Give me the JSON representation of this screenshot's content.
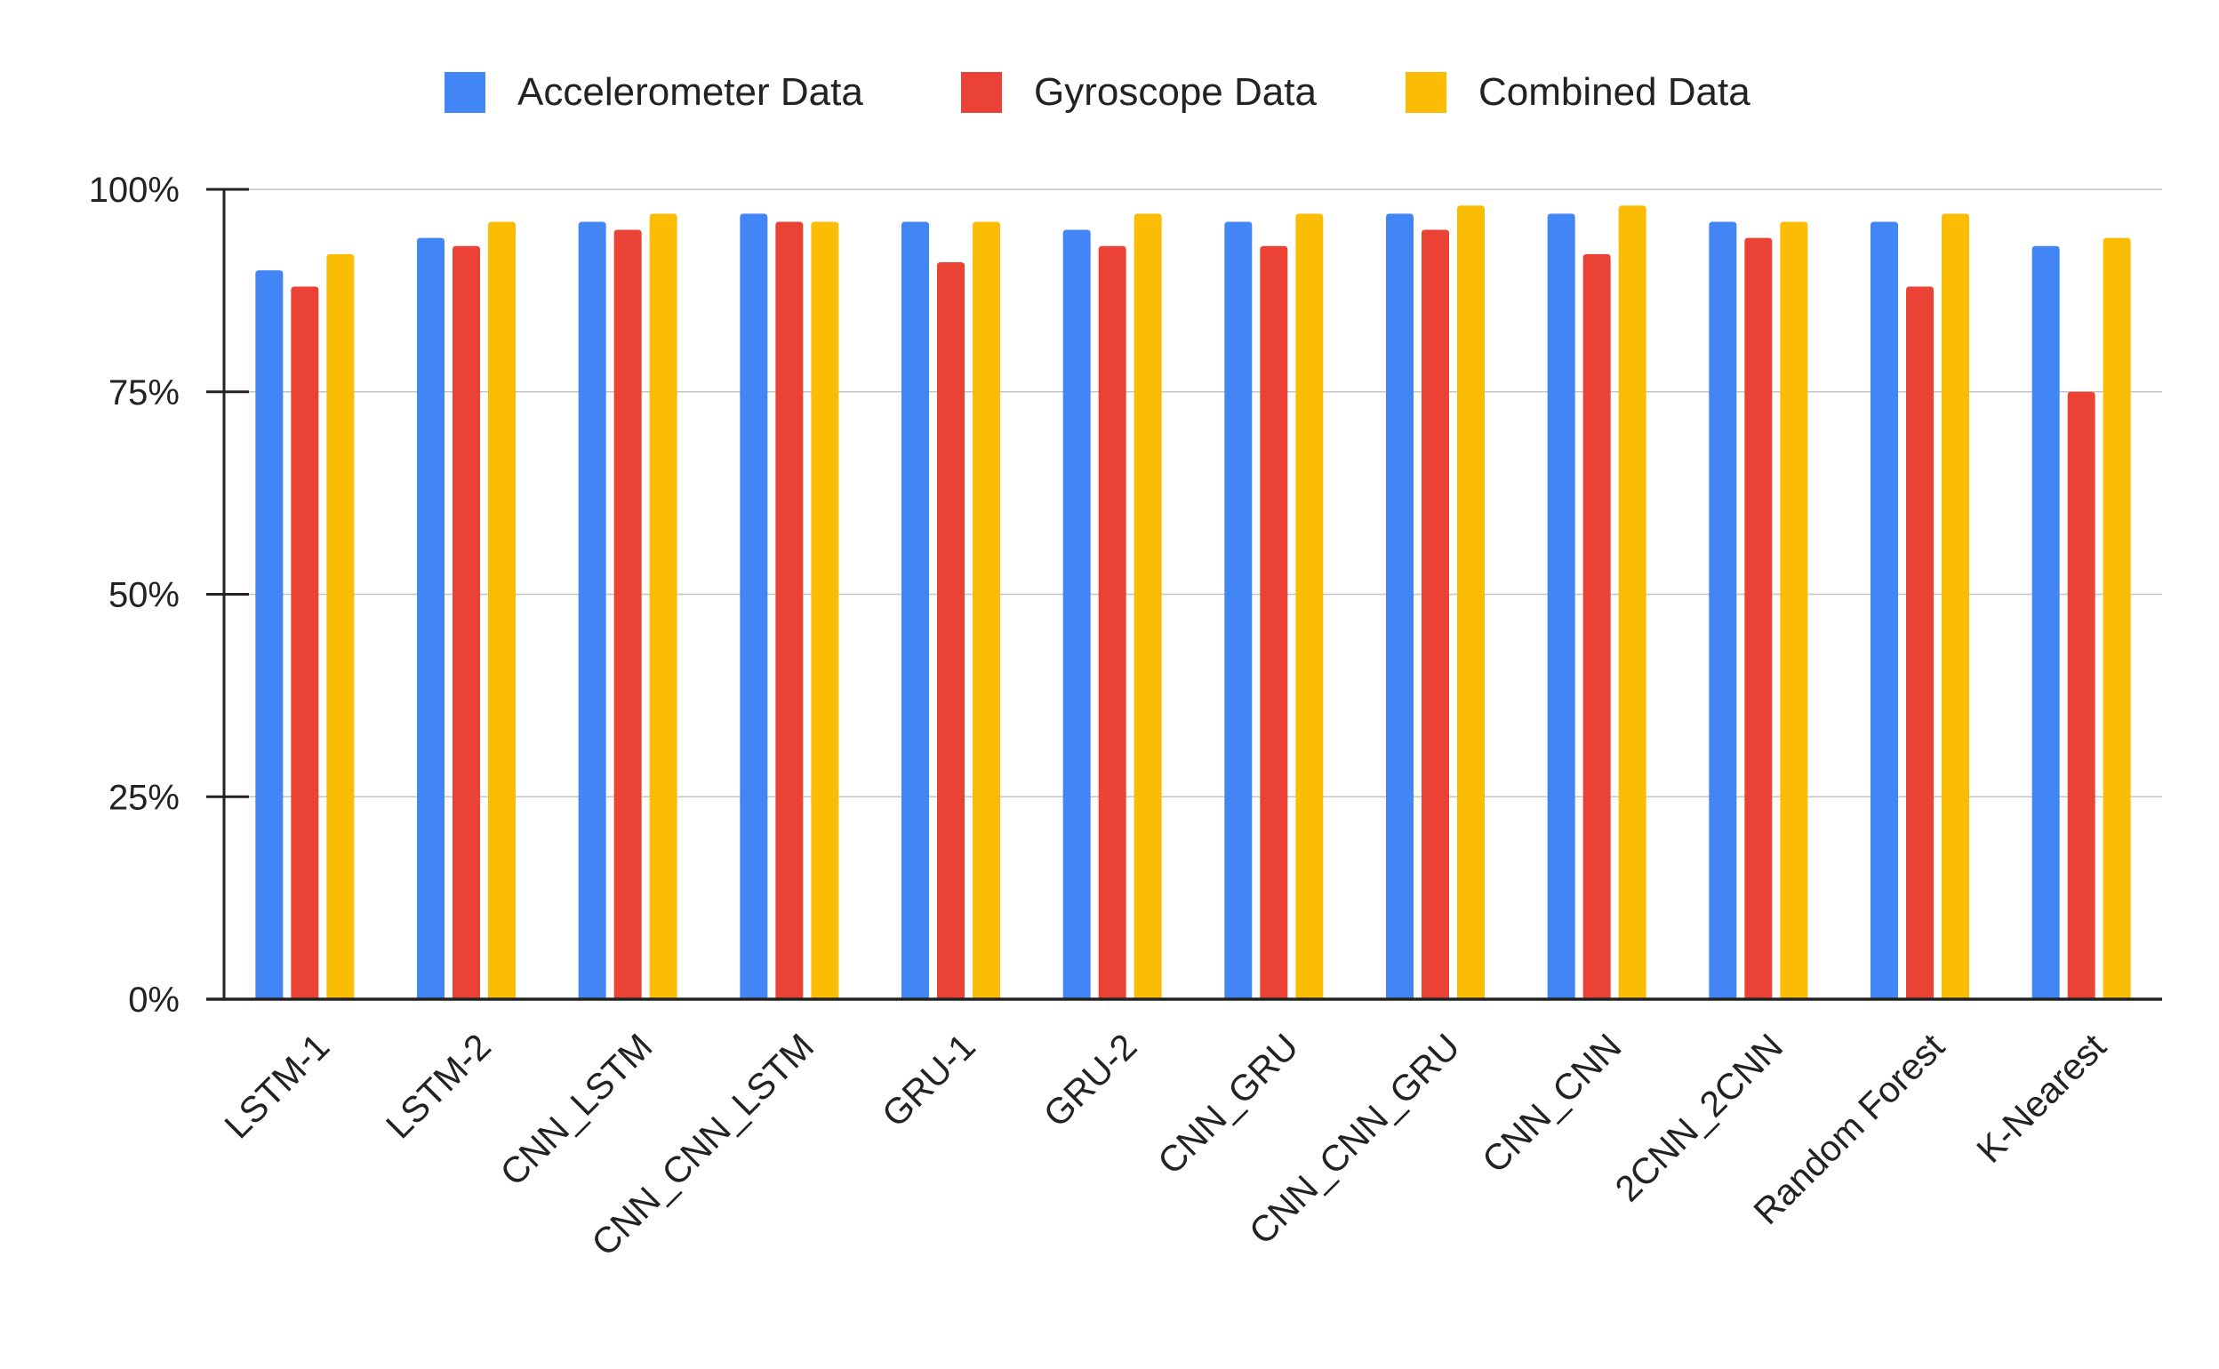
{
  "chart_data": {
    "type": "bar",
    "title": "",
    "xlabel": "",
    "ylabel": "",
    "ylim": [
      0,
      100
    ],
    "yticks": [
      0,
      25,
      50,
      75,
      100
    ],
    "ytick_labels": [
      "0%",
      "25%",
      "50%",
      "75%",
      "100%"
    ],
    "grid": true,
    "legend_position": "top-center",
    "categories": [
      "LSTM-1",
      "LSTM-2",
      "CNN_LSTM",
      "CNN_CNN_LSTM",
      "GRU-1",
      "GRU-2",
      "CNN_GRU",
      "CNN_CNN_GRU",
      "CNN_CNN",
      "2CNN_2CNN",
      "Random Forest",
      "K-Nearest"
    ],
    "series": [
      {
        "name": "Accelerometer Data",
        "color": "#4285F4",
        "values": [
          90,
          94,
          96,
          97,
          96,
          95,
          96,
          97,
          97,
          96,
          96,
          93
        ]
      },
      {
        "name": "Gyroscope Data",
        "color": "#EA4335",
        "values": [
          88,
          93,
          95,
          96,
          91,
          93,
          93,
          95,
          92,
          94,
          88,
          75
        ]
      },
      {
        "name": "Combined Data",
        "color": "#FBBC04",
        "values": [
          92,
          96,
          97,
          96,
          96,
          97,
          97,
          98,
          98,
          96,
          97,
          94
        ]
      }
    ]
  }
}
